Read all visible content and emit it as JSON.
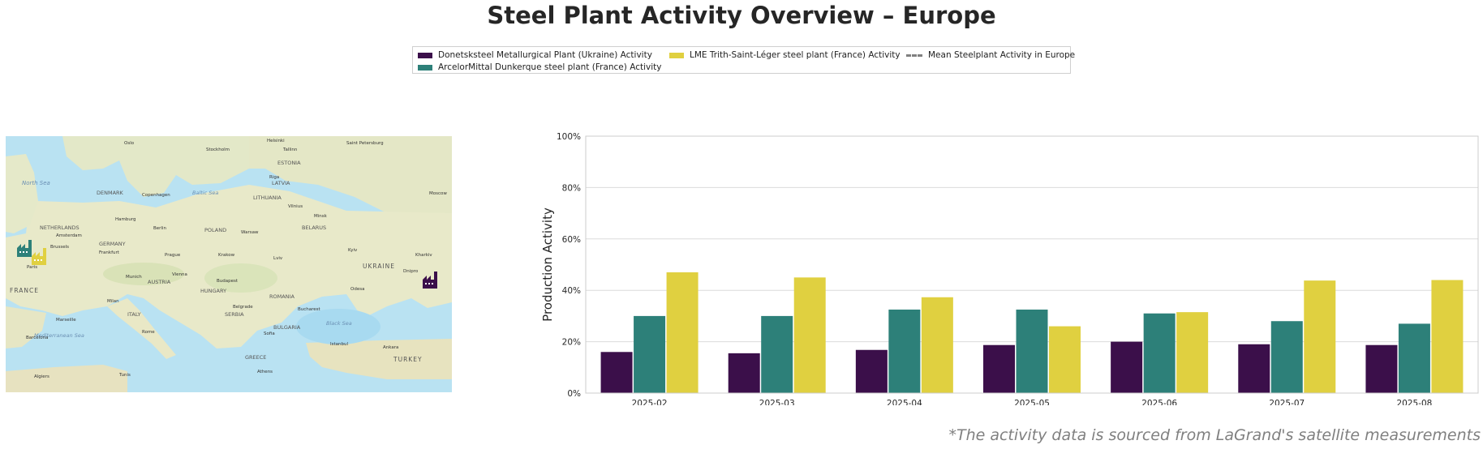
{
  "title": "Steel Plant Activity Overview – Europe",
  "footnote": "*The activity data is sourced from LaGrand's satellite measurements",
  "legend": [
    {
      "label": "Donetsksteel Metallurgical Plant (Ukraine) Activity",
      "color": "#3b0f4a",
      "kind": "bar"
    },
    {
      "label": "ArcelorMittal Dunkerque steel plant (France) Activity",
      "color": "#2d8079",
      "kind": "bar"
    },
    {
      "label": "LME Trith-Saint-Léger steel plant (France) Activity",
      "color": "#e0d040",
      "kind": "bar"
    },
    {
      "label": "Mean Steelplant Activity in Europe",
      "color": "#808080",
      "kind": "dashed-line"
    }
  ],
  "map": {
    "labels": {
      "north_sea": "North Sea",
      "baltic_sea": "Baltic Sea",
      "black_sea": "Black Sea",
      "med_sea": "Mediterranean Sea",
      "ukraine": "UKRAINE",
      "france": "FRANCE",
      "turkey": "TURKEY",
      "poland": "POLAND",
      "belarus": "BELARUS",
      "romania": "ROMANIA",
      "italy": "ITALY",
      "germany": "GERMANY",
      "denmark": "DENMARK",
      "lithuania": "LITHUANIA",
      "latvia": "LATVIA",
      "estonia": "ESTONIA",
      "netherlands": "NETHERLANDS",
      "hungary": "HUNGARY",
      "austria": "AUSTRIA",
      "greece": "GREECE",
      "serbia": "SERBIA",
      "bulgaria": "BULGARIA",
      "oslo": "Oslo",
      "stockholm": "Stockholm",
      "helsinki": "Helsinki",
      "tallinn": "Tallinn",
      "riga": "Riga",
      "saint_petersburg": "Saint Petersburg",
      "moscow": "Moscow",
      "minsk": "Minsk",
      "vilnius": "Vilnius",
      "copenhagen": "Copenhagen",
      "hamburg": "Hamburg",
      "berlin": "Berlin",
      "warsaw": "Warsaw",
      "amsterdam": "Amsterdam",
      "brussels": "Brussels",
      "paris": "Paris",
      "frankfurt": "Frankfurt",
      "prague": "Prague",
      "krakow": "Krakow",
      "lviv": "Lviv",
      "kyiv": "Kyiv",
      "kharkiv": "Kharkiv",
      "dnipro": "Dnipro",
      "vienna": "Vienna",
      "budapest": "Budapest",
      "munich": "Munich",
      "milan": "Milan",
      "marseille": "Marseille",
      "barcelona": "Barcelona",
      "rome": "Rome",
      "belgrade": "Belgrade",
      "bucharest": "Bucharest",
      "sofia": "Sofia",
      "istanbul": "Istanbul",
      "athens": "Athens",
      "ankara": "Ankara",
      "odesa": "Odesa",
      "tunis": "Tunis",
      "algiers": "Algiers"
    },
    "markers": [
      {
        "name": "ArcelorMittal Dunkerque",
        "color": "#2d8079",
        "icon": "factory-icon"
      },
      {
        "name": "LME Trith-Saint-Léger",
        "color": "#e0d040",
        "icon": "factory-icon"
      },
      {
        "name": "Donetsksteel",
        "color": "#3b0f4a",
        "icon": "factory-icon"
      }
    ]
  },
  "chart_data": {
    "type": "bar",
    "title": "Steel Plant Activity Overview – Europe",
    "xlabel": "",
    "ylabel": "Production Activity",
    "ylim": [
      0,
      100
    ],
    "yticks": [
      "0%",
      "20%",
      "40%",
      "60%",
      "80%",
      "100%"
    ],
    "y_tick_values": [
      0,
      20,
      40,
      60,
      80,
      100
    ],
    "categories": [
      "2025-02",
      "2025-03",
      "2025-04",
      "2025-05",
      "2025-06",
      "2025-07",
      "2025-08"
    ],
    "series": [
      {
        "name": "Donetsksteel Metallurgical Plant (Ukraine) Activity",
        "color": "#3b0f4a",
        "values": [
          16,
          15.5,
          16.8,
          18.7,
          20,
          19,
          18.7
        ]
      },
      {
        "name": "ArcelorMittal Dunkerque steel plant (France) Activity",
        "color": "#2d8079",
        "values": [
          30,
          30,
          32.5,
          32.5,
          31,
          28,
          27
        ]
      },
      {
        "name": "LME Trith-Saint-Léger steel plant (France) Activity",
        "color": "#e0d040",
        "values": [
          47,
          45,
          37.3,
          26,
          31.5,
          43.8,
          44
        ]
      }
    ],
    "grid": true,
    "legend_position": "top-center"
  }
}
